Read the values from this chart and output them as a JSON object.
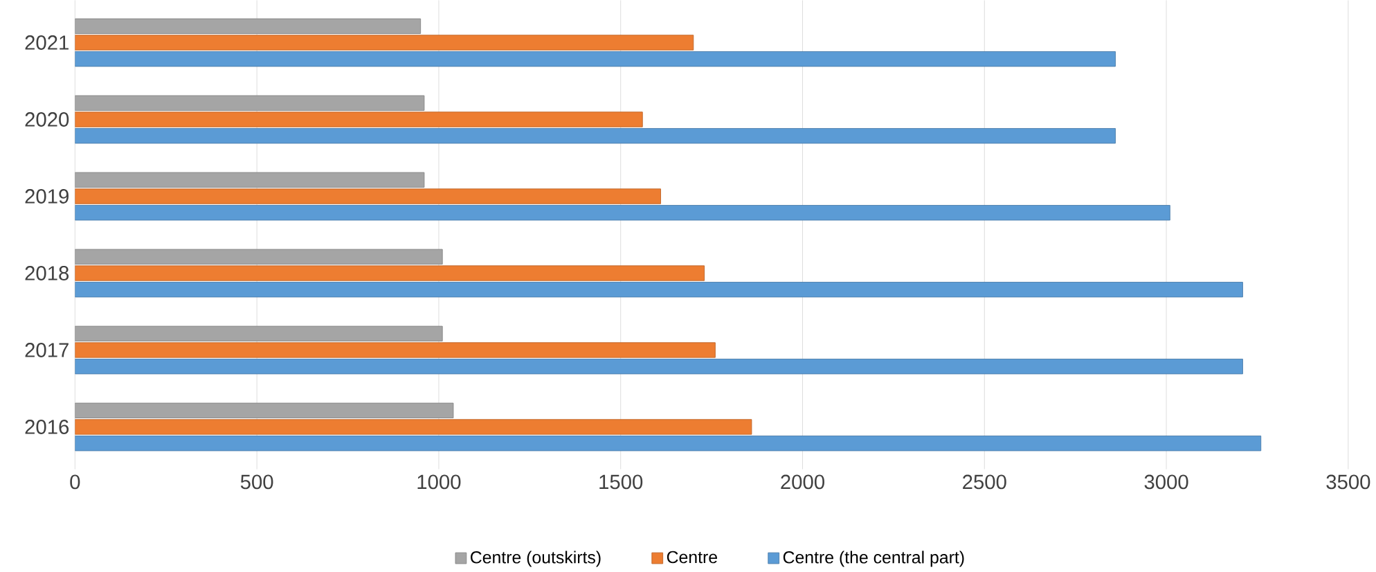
{
  "chart_data": {
    "type": "bar",
    "orientation": "horizontal",
    "categories": [
      "2021",
      "2020",
      "2019",
      "2018",
      "2017",
      "2016"
    ],
    "series": [
      {
        "name": "Centre (outskirts)",
        "color": "#a5a5a5",
        "values": [
          950,
          960,
          960,
          1010,
          1010,
          1040
        ]
      },
      {
        "name": "Centre",
        "color": "#ed7d31",
        "values": [
          1700,
          1560,
          1610,
          1730,
          1760,
          1860
        ]
      },
      {
        "name": "Centre (the central part)",
        "color": "#5b9bd5",
        "values": [
          2860,
          2860,
          3010,
          3210,
          3210,
          3260
        ]
      }
    ],
    "xlim": [
      0,
      3500
    ],
    "xticks": [
      0,
      500,
      1000,
      1500,
      2000,
      2500,
      3000,
      3500
    ],
    "grid": "x",
    "legend": "bottom"
  }
}
